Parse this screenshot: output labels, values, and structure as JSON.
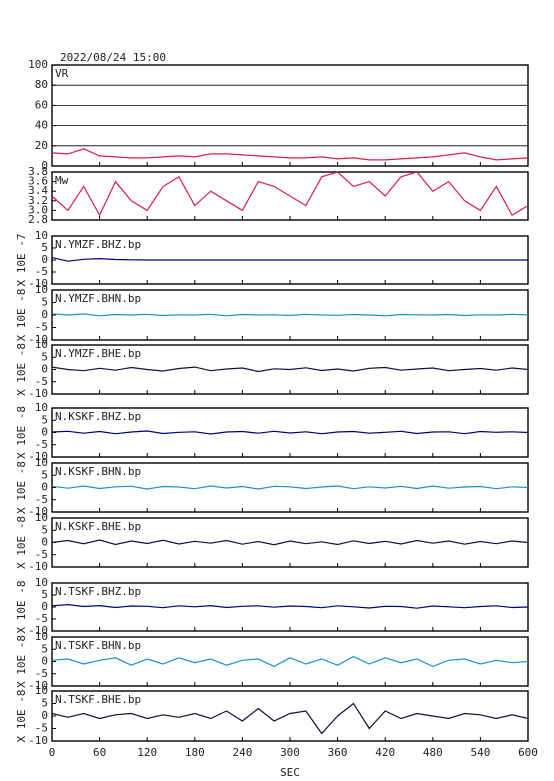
{
  "chart_data": [
    {
      "type": "line",
      "title": "2022/08/24 15:00",
      "label": "VR",
      "color": "#d81e4a",
      "ylim": [
        0,
        100
      ],
      "yticks": [
        0,
        20,
        40,
        60,
        80,
        100
      ],
      "grid": true,
      "x": [
        0,
        20,
        40,
        60,
        80,
        100,
        120,
        140,
        160,
        180,
        200,
        220,
        240,
        260,
        280,
        300,
        320,
        340,
        360,
        380,
        400,
        420,
        440,
        460,
        480,
        500,
        520,
        540,
        560,
        580,
        600
      ],
      "values": [
        13,
        12,
        17,
        10,
        9,
        8,
        8,
        9,
        10,
        9,
        12,
        12,
        11,
        10,
        9,
        8,
        8,
        9,
        7,
        8,
        6,
        6,
        7,
        8,
        9,
        11,
        13,
        9,
        6,
        7,
        8
      ]
    },
    {
      "type": "line",
      "label": "Mw",
      "color": "#d81e4a",
      "ylim": [
        2.8,
        3.8
      ],
      "yticks": [
        2.8,
        {
          "value": 3,
          "label": "3.0"
        },
        3.2,
        3.4,
        3.6,
        3.8
      ],
      "x": [
        0,
        20,
        40,
        60,
        80,
        100,
        120,
        140,
        160,
        180,
        200,
        220,
        240,
        260,
        280,
        300,
        320,
        340,
        360,
        380,
        400,
        420,
        440,
        460,
        480,
        500,
        520,
        540,
        560,
        580,
        600
      ],
      "values": [
        3.3,
        3.0,
        3.5,
        2.9,
        3.6,
        3.2,
        3.0,
        3.5,
        3.7,
        3.1,
        3.4,
        3.2,
        3.0,
        3.6,
        3.5,
        3.3,
        3.1,
        3.7,
        3.8,
        3.5,
        3.6,
        3.3,
        3.7,
        3.8,
        3.4,
        3.6,
        3.2,
        3.0,
        3.5,
        2.9,
        3.1
      ]
    },
    {
      "type": "line",
      "label": "N.YMZF.BHZ.bp",
      "ylabel": "X 10E -7",
      "color": "#00007a",
      "ylim": [
        -10,
        10
      ],
      "yticks": [
        -10,
        -5,
        0,
        5,
        10
      ],
      "x": [
        0,
        20,
        40,
        60,
        80,
        100,
        120,
        140,
        160,
        180,
        200,
        220,
        240,
        260,
        280,
        300,
        320,
        340,
        360,
        380,
        400,
        420,
        440,
        460,
        480,
        500,
        520,
        540,
        560,
        580,
        600
      ],
      "values": [
        1,
        -0.5,
        0.3,
        0.6,
        0.2,
        0.1,
        0,
        0,
        0,
        0,
        0,
        0,
        0,
        0,
        0,
        0,
        0,
        0,
        0,
        0,
        0,
        0,
        0,
        0,
        0,
        0,
        0,
        0,
        0,
        0,
        0
      ]
    },
    {
      "type": "line",
      "label": "N.YMZF.BHN.bp",
      "ylabel": "X 10E -8",
      "color": "#1e8fd0",
      "ylim": [
        -10,
        10
      ],
      "yticks": [
        -10,
        -5,
        0,
        5,
        10
      ],
      "x": [
        0,
        20,
        40,
        60,
        80,
        100,
        120,
        140,
        160,
        180,
        200,
        220,
        240,
        260,
        280,
        300,
        320,
        340,
        360,
        380,
        400,
        420,
        440,
        460,
        480,
        500,
        520,
        540,
        560,
        580,
        600
      ],
      "values": [
        0.5,
        0,
        0.4,
        -0.3,
        0.2,
        0,
        0.3,
        -0.2,
        0.1,
        0,
        0.3,
        -0.3,
        0.2,
        0,
        0.1,
        -0.2,
        0.3,
        0,
        -0.1,
        0.2,
        0,
        -0.3,
        0.2,
        0.1,
        0,
        0.2,
        -0.2,
        0.1,
        0,
        0.3,
        0
      ]
    },
    {
      "type": "line",
      "label": "N.YMZF.BHE.bp",
      "ylabel": "X 10E -8",
      "color": "#101040",
      "ylim": [
        -10,
        10
      ],
      "yticks": [
        -10,
        -5,
        0,
        5,
        10
      ],
      "x": [
        0,
        20,
        40,
        60,
        80,
        100,
        120,
        140,
        160,
        180,
        200,
        220,
        240,
        260,
        280,
        300,
        320,
        340,
        360,
        380,
        400,
        420,
        440,
        460,
        480,
        500,
        520,
        540,
        560,
        580,
        600
      ],
      "values": [
        1,
        0,
        -0.5,
        0.5,
        -0.3,
        0.8,
        0,
        -0.6,
        0.4,
        1,
        -0.5,
        0.2,
        0.6,
        -0.8,
        0.3,
        0,
        0.7,
        -0.4,
        0.2,
        -0.6,
        0.5,
        0.8,
        -0.3,
        0.2,
        0.6,
        -0.5,
        0,
        0.4,
        -0.3,
        0.6,
        0
      ]
    },
    {
      "type": "line",
      "label": "N.KSKF.BHZ.bp",
      "ylabel": "X 10E -8",
      "color": "#00007a",
      "ylim": [
        -10,
        10
      ],
      "yticks": [
        -10,
        -5,
        0,
        5,
        10
      ],
      "x": [
        0,
        20,
        40,
        60,
        80,
        100,
        120,
        140,
        160,
        180,
        200,
        220,
        240,
        260,
        280,
        300,
        320,
        340,
        360,
        380,
        400,
        420,
        440,
        460,
        480,
        500,
        520,
        540,
        560,
        580,
        600
      ],
      "values": [
        0.2,
        0.5,
        -0.3,
        0.4,
        -0.5,
        0.2,
        0.6,
        -0.4,
        0.1,
        0.3,
        -0.6,
        0.2,
        0.4,
        -0.3,
        0.5,
        -0.2,
        0.3,
        -0.5,
        0.2,
        0.4,
        -0.3,
        0.1,
        0.5,
        -0.4,
        0.2,
        0.3,
        -0.5,
        0.4,
        0.1,
        0.3,
        0
      ]
    },
    {
      "type": "line",
      "label": "N.KSKF.BHN.bp",
      "ylabel": "X 10E -8",
      "color": "#1e8fd0",
      "ylim": [
        -10,
        10
      ],
      "yticks": [
        -10,
        -5,
        0,
        5,
        10
      ],
      "x": [
        0,
        20,
        40,
        60,
        80,
        100,
        120,
        140,
        160,
        180,
        200,
        220,
        240,
        260,
        280,
        300,
        320,
        340,
        360,
        380,
        400,
        420,
        440,
        460,
        480,
        500,
        520,
        540,
        560,
        580,
        600
      ],
      "values": [
        0.5,
        -0.3,
        0.6,
        -0.4,
        0.3,
        0.5,
        -0.6,
        0.4,
        0.2,
        -0.5,
        0.6,
        -0.2,
        0.4,
        -0.6,
        0.5,
        0.3,
        -0.4,
        0.2,
        0.6,
        -0.5,
        0.3,
        -0.2,
        0.5,
        -0.4,
        0.6,
        -0.3,
        0.2,
        0.4,
        -0.5,
        0.3,
        0
      ]
    },
    {
      "type": "line",
      "label": "N.KSKF.BHE.bp",
      "ylabel": "X 10E -8",
      "color": "#101040",
      "ylim": [
        -10,
        10
      ],
      "yticks": [
        -10,
        -5,
        0,
        5,
        10
      ],
      "x": [
        0,
        20,
        40,
        60,
        80,
        100,
        120,
        140,
        160,
        180,
        200,
        220,
        240,
        260,
        280,
        300,
        320,
        340,
        360,
        380,
        400,
        420,
        440,
        460,
        480,
        500,
        520,
        540,
        560,
        580,
        600
      ],
      "values": [
        0,
        0.8,
        -0.5,
        1,
        -0.8,
        0.6,
        -0.4,
        0.9,
        -0.6,
        0.5,
        -0.3,
        0.8,
        -0.7,
        0.4,
        -0.9,
        0.6,
        -0.5,
        0.3,
        -0.8,
        0.7,
        -0.4,
        0.5,
        -0.6,
        0.8,
        -0.3,
        0.6,
        -0.7,
        0.4,
        -0.5,
        0.6,
        0
      ]
    },
    {
      "type": "line",
      "label": "N.TSKF.BHZ.bp",
      "ylabel": "X 10E -8",
      "color": "#00007a",
      "ylim": [
        -10,
        10
      ],
      "yticks": [
        -10,
        -5,
        0,
        5,
        10
      ],
      "x": [
        0,
        20,
        40,
        60,
        80,
        100,
        120,
        140,
        160,
        180,
        200,
        220,
        240,
        260,
        280,
        300,
        320,
        340,
        360,
        380,
        400,
        420,
        440,
        460,
        480,
        500,
        520,
        540,
        560,
        580,
        600
      ],
      "values": [
        0.5,
        1,
        0.2,
        0.6,
        -0.2,
        0.4,
        0.3,
        -0.3,
        0.5,
        0.1,
        0.6,
        -0.2,
        0.3,
        0.5,
        -0.1,
        0.4,
        0.2,
        -0.3,
        0.5,
        0.1,
        -0.4,
        0.3,
        0.2,
        -0.5,
        0.4,
        0.1,
        -0.3,
        0.2,
        0.5,
        -0.2,
        0
      ]
    },
    {
      "type": "line",
      "label": "N.TSKF.BHN.bp",
      "ylabel": "X 10E -8",
      "color": "#1e8fd0",
      "ylim": [
        -10,
        10
      ],
      "yticks": [
        -10,
        -5,
        0,
        5,
        10
      ],
      "x": [
        0,
        20,
        40,
        60,
        80,
        100,
        120,
        140,
        160,
        180,
        200,
        220,
        240,
        260,
        280,
        300,
        320,
        340,
        360,
        380,
        400,
        420,
        440,
        460,
        480,
        500,
        520,
        540,
        560,
        580,
        600
      ],
      "values": [
        0.5,
        1,
        -1,
        0.5,
        1.5,
        -1.5,
        1,
        -1,
        1.5,
        -0.5,
        1,
        -1.5,
        0.5,
        1,
        -2,
        1.5,
        -1,
        1,
        -1.5,
        2,
        -1,
        1.5,
        -0.5,
        1,
        -2,
        0.5,
        1,
        -1,
        0.5,
        -0.5,
        0
      ]
    },
    {
      "type": "line",
      "label": "N.TSKF.BHE.bp",
      "ylabel": "X 10E -8",
      "color": "#101040",
      "ylim": [
        -10,
        10
      ],
      "yticks": [
        -10,
        -5,
        0,
        5,
        10
      ],
      "xlabel": "SEC",
      "xlim": [
        0,
        600
      ],
      "xticks": [
        0,
        60,
        120,
        180,
        240,
        300,
        360,
        420,
        480,
        540,
        600
      ],
      "x": [
        0,
        20,
        40,
        60,
        80,
        100,
        120,
        140,
        160,
        180,
        200,
        220,
        240,
        260,
        280,
        300,
        320,
        340,
        360,
        380,
        400,
        420,
        440,
        460,
        480,
        500,
        520,
        540,
        560,
        580,
        600
      ],
      "values": [
        1,
        -0.5,
        1,
        -1,
        0.5,
        1,
        -1,
        0.5,
        -0.5,
        1,
        -1,
        2,
        -2,
        3,
        -2,
        1,
        2,
        -7,
        0,
        5,
        -5,
        2,
        -1,
        1,
        0,
        -1,
        1,
        0.5,
        -1,
        0.5,
        -1
      ]
    }
  ]
}
